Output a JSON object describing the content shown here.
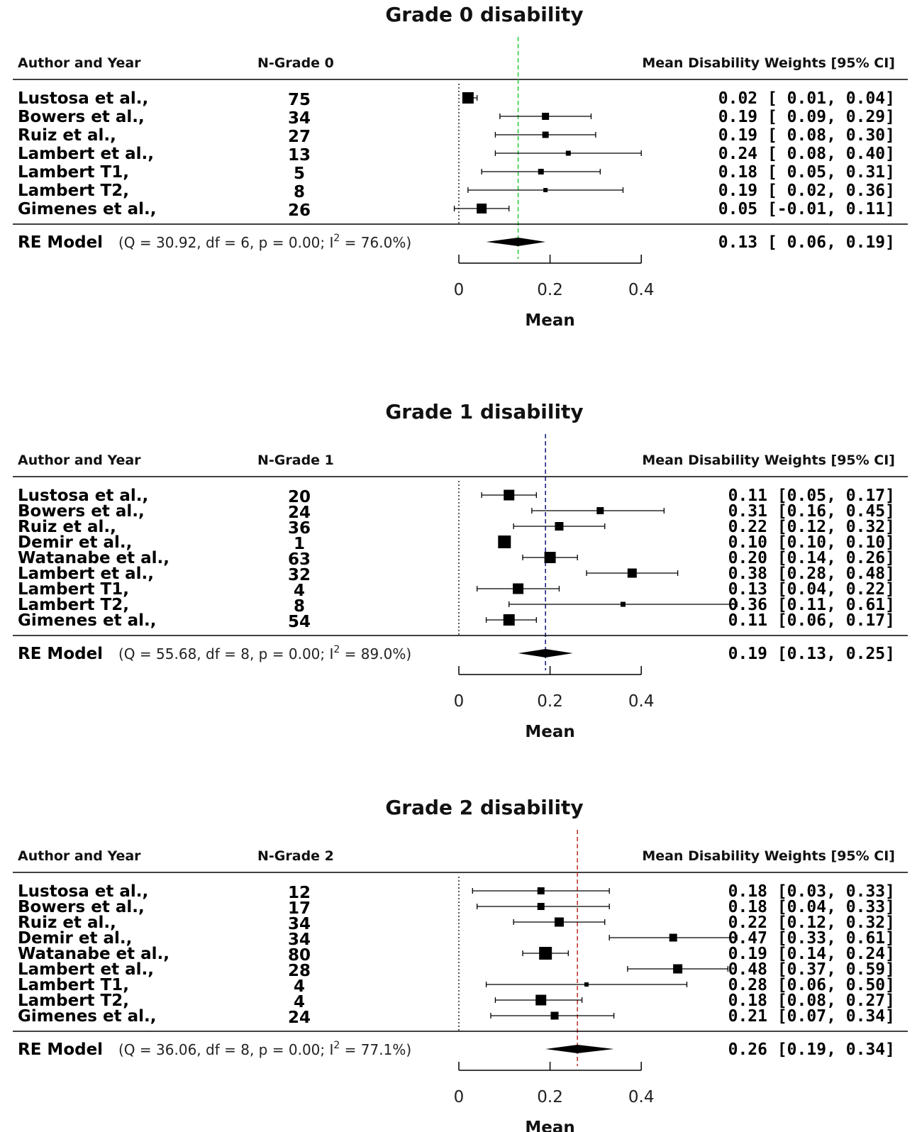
{
  "chart_data": [
    {
      "type": "forest",
      "title": "Grade 0 disability",
      "headers": {
        "author": "Author and Year",
        "n": "N-Grade 0",
        "ci": "Mean Disability Weights [95% CI]"
      },
      "ref_line_color": "#2ecc40",
      "studies": [
        {
          "label": "Lustosa et al.,",
          "n": "75",
          "mean": 0.02,
          "lower": 0.01,
          "upper": 0.04,
          "ci_text": "0.02 [ 0.01, 0.04]",
          "box": 16
        },
        {
          "label": "Bowers et al.,",
          "n": "34",
          "mean": 0.19,
          "lower": 0.09,
          "upper": 0.29,
          "ci_text": "0.19 [ 0.09, 0.29]",
          "box": 10
        },
        {
          "label": "Ruiz et al.,",
          "n": "27",
          "mean": 0.19,
          "lower": 0.08,
          "upper": 0.3,
          "ci_text": "0.19 [ 0.08, 0.30]",
          "box": 9
        },
        {
          "label": "Lambert et al.,",
          "n": "13",
          "mean": 0.24,
          "lower": 0.08,
          "upper": 0.4,
          "ci_text": "0.24 [ 0.08, 0.40]",
          "box": 7
        },
        {
          "label": "Lambert T1,",
          "n": "5",
          "mean": 0.18,
          "lower": 0.05,
          "upper": 0.31,
          "ci_text": "0.18 [ 0.05, 0.31]",
          "box": 8
        },
        {
          "label": "Lambert T2,",
          "n": "8",
          "mean": 0.19,
          "lower": 0.02,
          "upper": 0.36,
          "ci_text": "0.19 [ 0.02, 0.36]",
          "box": 6
        },
        {
          "label": "Gimenes et al.,",
          "n": "26",
          "mean": 0.05,
          "lower": -0.01,
          "upper": 0.11,
          "ci_text": "0.05 [-0.01, 0.11]",
          "box": 14
        }
      ],
      "summary": {
        "label": "RE Model",
        "q": "30.92",
        "df": "6",
        "p": "0.00",
        "i2": "76.0%",
        "mean": 0.13,
        "lower": 0.06,
        "upper": 0.19,
        "ci_text": "0.13 [ 0.06, 0.19]"
      },
      "x_ticks": [
        "0",
        "0.2",
        "0.4"
      ],
      "xlim": [
        0,
        0.4
      ],
      "xlabel": "Mean"
    },
    {
      "type": "forest",
      "title": "Grade 1 disability",
      "headers": {
        "author": "Author and Year",
        "n": "N-Grade 1",
        "ci": "Mean Disability Weights [95% CI]"
      },
      "ref_line_color": "#1a237e",
      "studies": [
        {
          "label": "Lustosa et al.,",
          "n": "20",
          "mean": 0.11,
          "lower": 0.05,
          "upper": 0.17,
          "ci_text": "0.11 [0.05, 0.17]",
          "box": 15
        },
        {
          "label": "Bowers et al.,",
          "n": "24",
          "mean": 0.31,
          "lower": 0.16,
          "upper": 0.45,
          "ci_text": "0.31 [0.16, 0.45]",
          "box": 10
        },
        {
          "label": "Ruiz et al.,",
          "n": "36",
          "mean": 0.22,
          "lower": 0.12,
          "upper": 0.32,
          "ci_text": "0.22 [0.12, 0.32]",
          "box": 12
        },
        {
          "label": "Demir et al.,",
          "n": "1",
          "mean": 0.1,
          "lower": 0.1,
          "upper": 0.1,
          "ci_text": "0.10 [0.10, 0.10]",
          "box": 18
        },
        {
          "label": "Watanabe et al.,",
          "n": "63",
          "mean": 0.2,
          "lower": 0.14,
          "upper": 0.26,
          "ci_text": "0.20 [0.14, 0.26]",
          "box": 16
        },
        {
          "label": "Lambert et al.,",
          "n": "32",
          "mean": 0.38,
          "lower": 0.28,
          "upper": 0.48,
          "ci_text": "0.38 [0.28, 0.48]",
          "box": 13
        },
        {
          "label": "Lambert T1,",
          "n": "4",
          "mean": 0.13,
          "lower": 0.04,
          "upper": 0.22,
          "ci_text": "0.13 [0.04, 0.22]",
          "box": 15
        },
        {
          "label": "Lambert T2,",
          "n": "8",
          "mean": 0.36,
          "lower": 0.11,
          "upper": 0.61,
          "ci_text": "0.36 [0.11, 0.61]",
          "box": 7
        },
        {
          "label": "Gimenes et al.,",
          "n": "54",
          "mean": 0.11,
          "lower": 0.06,
          "upper": 0.17,
          "ci_text": "0.11 [0.06, 0.17]",
          "box": 16
        }
      ],
      "summary": {
        "label": "RE Model",
        "q": "55.68",
        "df": "8",
        "p": "0.00",
        "i2": "89.0%",
        "mean": 0.19,
        "lower": 0.13,
        "upper": 0.25,
        "ci_text": "0.19 [0.13, 0.25]"
      },
      "x_ticks": [
        "0",
        "0.2",
        "0.4"
      ],
      "xlim": [
        0,
        0.4
      ],
      "xlabel": "Mean"
    },
    {
      "type": "forest",
      "title": "Grade 2 disability",
      "headers": {
        "author": "Author and Year",
        "n": "N-Grade 2",
        "ci": "Mean Disability Weights [95% CI]"
      },
      "ref_line_color": "#c0392b",
      "studies": [
        {
          "label": "Lustosa et al.,",
          "n": "12",
          "mean": 0.18,
          "lower": 0.03,
          "upper": 0.33,
          "ci_text": "0.18 [0.03, 0.33]",
          "box": 10
        },
        {
          "label": "Bowers et al.,",
          "n": "17",
          "mean": 0.18,
          "lower": 0.04,
          "upper": 0.33,
          "ci_text": "0.18 [0.04, 0.33]",
          "box": 10
        },
        {
          "label": "Ruiz et al.,",
          "n": "34",
          "mean": 0.22,
          "lower": 0.12,
          "upper": 0.32,
          "ci_text": "0.22 [0.12, 0.32]",
          "box": 13
        },
        {
          "label": "Demir et al.,",
          "n": "34",
          "mean": 0.47,
          "lower": 0.33,
          "upper": 0.61,
          "ci_text": "0.47 [0.33, 0.61]",
          "box": 11
        },
        {
          "label": "Watanabe et al.,",
          "n": "80",
          "mean": 0.19,
          "lower": 0.14,
          "upper": 0.24,
          "ci_text": "0.19 [0.14, 0.24]",
          "box": 18
        },
        {
          "label": "Lambert et al.,",
          "n": "28",
          "mean": 0.48,
          "lower": 0.37,
          "upper": 0.59,
          "ci_text": "0.48 [0.37, 0.59]",
          "box": 13
        },
        {
          "label": "Lambert T1,",
          "n": "4",
          "mean": 0.28,
          "lower": 0.06,
          "upper": 0.5,
          "ci_text": "0.28 [0.06, 0.50]",
          "box": 6
        },
        {
          "label": "Lambert T2,",
          "n": "4",
          "mean": 0.18,
          "lower": 0.08,
          "upper": 0.27,
          "ci_text": "0.18 [0.08, 0.27]",
          "box": 15
        },
        {
          "label": "Gimenes et al.,",
          "n": "24",
          "mean": 0.21,
          "lower": 0.07,
          "upper": 0.34,
          "ci_text": "0.21 [0.07, 0.34]",
          "box": 11
        }
      ],
      "summary": {
        "label": "RE Model",
        "q": "36.06",
        "df": "8",
        "p": "0.00",
        "i2": "77.1%",
        "mean": 0.26,
        "lower": 0.19,
        "upper": 0.34,
        "ci_text": "0.26 [0.19, 0.34]"
      },
      "x_ticks": [
        "0",
        "0.2",
        "0.4"
      ],
      "xlim": [
        0,
        0.4
      ],
      "xlabel": "Mean"
    }
  ]
}
